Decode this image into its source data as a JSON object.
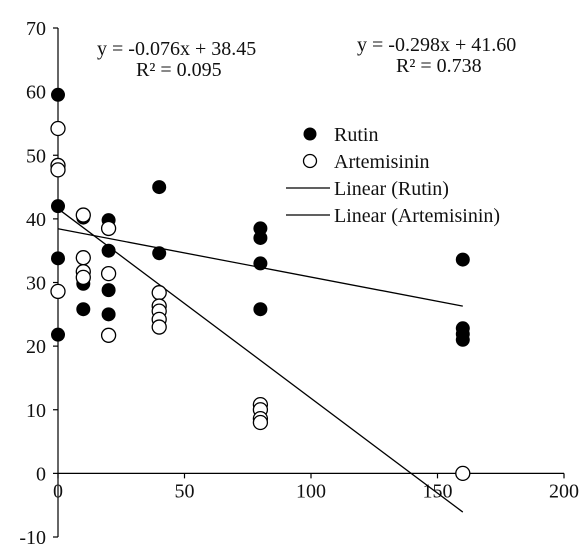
{
  "chart_data": {
    "type": "scatter",
    "xlim": [
      0,
      200
    ],
    "ylim": [
      -10,
      70
    ],
    "x_ticks": [
      "0",
      "50",
      "100",
      "150",
      "200"
    ],
    "y_ticks": [
      "-10",
      "0",
      "10",
      "20",
      "30",
      "40",
      "50",
      "60",
      "70"
    ],
    "grid": false,
    "legend_position": "right",
    "series": [
      {
        "name": "Rutin",
        "marker": "filled-circle",
        "color": "#000000",
        "points": [
          [
            0,
            59.5
          ],
          [
            0,
            42
          ],
          [
            0,
            33.8
          ],
          [
            0,
            21.8
          ],
          [
            10,
            40.2
          ],
          [
            10,
            30.5
          ],
          [
            10,
            29.8
          ],
          [
            10,
            25.8
          ],
          [
            20,
            39.8
          ],
          [
            20,
            35
          ],
          [
            20,
            28.8
          ],
          [
            20,
            25
          ],
          [
            40,
            45
          ],
          [
            40,
            34.6
          ],
          [
            40,
            24.2
          ],
          [
            80,
            38.5
          ],
          [
            80,
            37
          ],
          [
            80,
            33
          ],
          [
            80,
            25.8
          ],
          [
            160,
            33.6
          ],
          [
            160,
            22.8
          ],
          [
            160,
            21.9
          ],
          [
            160,
            21
          ]
        ]
      },
      {
        "name": "Artemisinin",
        "marker": "open-circle",
        "color": "#000000",
        "points": [
          [
            0,
            54.2
          ],
          [
            0,
            48.4
          ],
          [
            0,
            47.7
          ],
          [
            0,
            28.6
          ],
          [
            10,
            40.6
          ],
          [
            10,
            33.9
          ],
          [
            10,
            31.7
          ],
          [
            10,
            30.8
          ],
          [
            20,
            38.5
          ],
          [
            20,
            31.4
          ],
          [
            20,
            21.7
          ],
          [
            40,
            28.4
          ],
          [
            40,
            26.3
          ],
          [
            40,
            25.5
          ],
          [
            40,
            24.2
          ],
          [
            40,
            23
          ],
          [
            80,
            10.8
          ],
          [
            80,
            10
          ],
          [
            80,
            8.6
          ],
          [
            80,
            8
          ],
          [
            160,
            0
          ]
        ]
      }
    ],
    "trendlines": [
      {
        "name": "Linear (Rutin)",
        "slope": -0.076,
        "intercept": 38.45,
        "x_range": [
          0,
          160
        ]
      },
      {
        "name": "Linear (Artemisinin)",
        "slope": -0.298,
        "intercept": 41.6,
        "x_range": [
          0,
          160
        ]
      }
    ],
    "annotations": {
      "rutin_equation": "y = -0.076x + 38.45",
      "rutin_r2": "R² = 0.095",
      "artemisinin_equation": "y = -0.298x + 41.60",
      "artemisinin_r2": "R² = 0.738"
    },
    "legend": {
      "rutin": "Rutin",
      "artemisinin": "Artemisinin",
      "linear_rutin": "Linear (Rutin)",
      "linear_artemisinin": "Linear (Artemisinin)"
    }
  }
}
